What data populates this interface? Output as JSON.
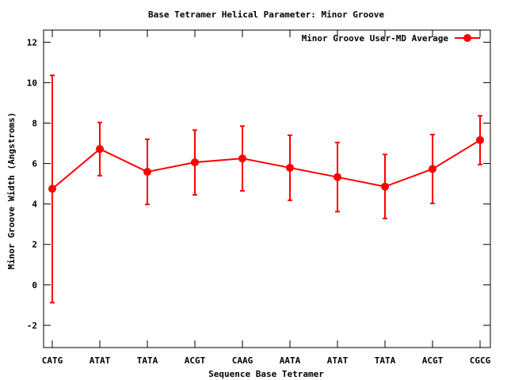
{
  "chart_data": {
    "type": "line",
    "title": "Base Tetramer Helical Parameter: Minor Groove",
    "xlabel": "Sequence Base Tetramer",
    "ylabel": "Minor Groove Width (Angstroms)",
    "categories": [
      "CATG",
      "ATAT",
      "TATA",
      "ACGT",
      "CAAG",
      "AATA",
      "ATAT",
      "TATA",
      "ACGT",
      "CGCG"
    ],
    "ylim": [
      -3.1,
      12.6
    ],
    "yticks": [
      -2,
      0,
      2,
      4,
      6,
      8,
      10,
      12
    ],
    "ytick_labels": [
      "-2",
      "0",
      "2",
      "4",
      "6",
      "8",
      "10",
      "12"
    ],
    "grid": false,
    "legend_position": "top-right",
    "series": [
      {
        "name": "Minor Groove User-MD Average",
        "color": "#ff0000",
        "values": [
          4.75,
          6.72,
          5.59,
          6.06,
          6.25,
          5.79,
          5.33,
          4.86,
          5.73,
          7.16
        ],
        "error_low": [
          -0.88,
          5.4,
          3.98,
          4.45,
          4.65,
          4.18,
          3.62,
          3.28,
          4.03,
          5.95
        ],
        "error_high": [
          10.36,
          8.03,
          7.2,
          7.65,
          7.85,
          7.4,
          7.04,
          6.45,
          7.43,
          8.36
        ]
      }
    ]
  }
}
